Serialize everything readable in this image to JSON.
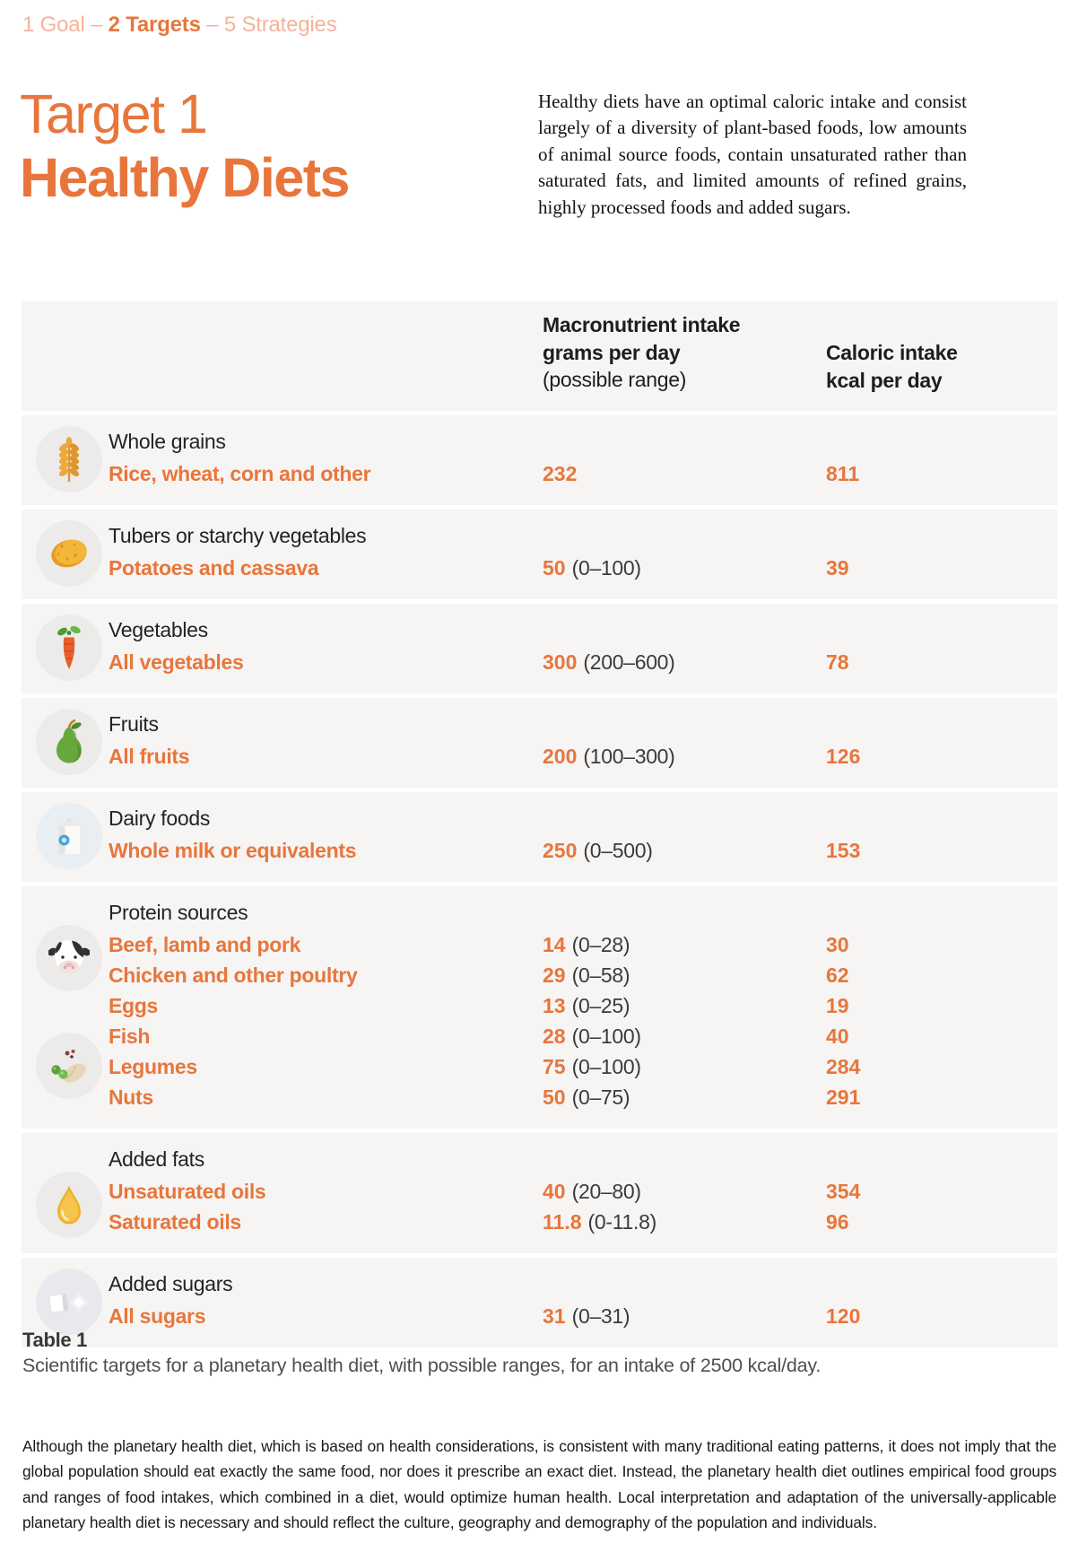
{
  "breadcrumb": {
    "prefix": "1 Goal – ",
    "highlight": "2 Targets",
    "suffix": " – 5 Strategies"
  },
  "hero": {
    "title_line1": "Target 1",
    "title_line2": "Healthy Diets",
    "intro": "Healthy diets have an optimal caloric intake and consist largely of a diversity of plant-based foods, low amounts of animal source foods, contain unsaturated rather than saturated fats, and limited amounts of refined grains, highly processed foods and added sugars."
  },
  "table": {
    "header": {
      "macro_line1": "Macronutrient intake",
      "macro_line2": "grams per day",
      "macro_line3": "(possible range)",
      "caloric_line1": "Caloric intake",
      "caloric_line2": "kcal per day"
    },
    "rows": [
      {
        "group": "Whole grains",
        "icons": [
          "wheat-icon"
        ],
        "items": [
          {
            "label": "Rice, wheat, corn and other",
            "amount": "232",
            "range": "",
            "kcal": "811"
          }
        ]
      },
      {
        "group": "Tubers or starchy vegetables",
        "icons": [
          "potato-icon"
        ],
        "items": [
          {
            "label": "Potatoes and cassava",
            "amount": "50",
            "range": "(0–100)",
            "kcal": "39"
          }
        ]
      },
      {
        "group": "Vegetables",
        "icons": [
          "carrot-icon"
        ],
        "items": [
          {
            "label": "All vegetables",
            "amount": "300",
            "range": "(200–600)",
            "kcal": "78"
          }
        ]
      },
      {
        "group": "Fruits",
        "icons": [
          "pear-icon"
        ],
        "items": [
          {
            "label": "All fruits",
            "amount": "200",
            "range": "(100–300)",
            "kcal": "126"
          }
        ]
      },
      {
        "group": "Dairy foods",
        "icons": [
          "milk-carton-icon"
        ],
        "items": [
          {
            "label": "Whole milk or equivalents",
            "amount": "250",
            "range": "(0–500)",
            "kcal": "153"
          }
        ]
      },
      {
        "group": "Protein sources",
        "icons": [
          "cow-icon",
          "legumes-icon"
        ],
        "items": [
          {
            "label": "Beef, lamb and pork",
            "amount": "14",
            "range": "(0–28)",
            "kcal": "30"
          },
          {
            "label": "Chicken and other poultry",
            "amount": "29",
            "range": "(0–58)",
            "kcal": "62"
          },
          {
            "label": "Eggs",
            "amount": "13",
            "range": "(0–25)",
            "kcal": "19"
          },
          {
            "label": "Fish",
            "amount": "28",
            "range": "(0–100)",
            "kcal": "40"
          },
          {
            "label": "Legumes",
            "amount": "75",
            "range": "(0–100)",
            "kcal": "284"
          },
          {
            "label": "Nuts",
            "amount": "50",
            "range": "(0–75)",
            "kcal": "291"
          }
        ]
      },
      {
        "group": "Added fats",
        "icons": [
          "oil-drop-icon"
        ],
        "items": [
          {
            "label": "Unsaturated oils",
            "amount": "40",
            "range": "(20–80)",
            "kcal": "354"
          },
          {
            "label": "Saturated oils",
            "amount": "11.8",
            "range": "(0-11.8)",
            "kcal": "96"
          }
        ]
      },
      {
        "group": "Added sugars",
        "icons": [
          "sugar-cubes-icon"
        ],
        "items": [
          {
            "label": "All sugars",
            "amount": "31",
            "range": "(0–31)",
            "kcal": "120"
          }
        ]
      }
    ]
  },
  "caption": {
    "label": "Table 1",
    "text": "Scientific targets for a planetary health diet, with possible ranges, for an intake of 2500 kcal/day."
  },
  "footnote": "Although the planetary health diet, which is based on health considerations, is consistent with many traditional eating patterns, it does not imply that the global population should eat exactly the same food, nor does it prescribe an exact diet. Instead, the planetary health diet outlines empirical food groups and ranges of food intakes, which combined in a diet, would optimize human health. Local interpretation and adaptation of the universally-applicable planetary health diet is necessary and should reflect the culture, geography and demography of the population and individuals.",
  "colors": {
    "accent": "#E8763C",
    "accent_light": "#F4B49B",
    "table_band": "#F6F5F4"
  }
}
